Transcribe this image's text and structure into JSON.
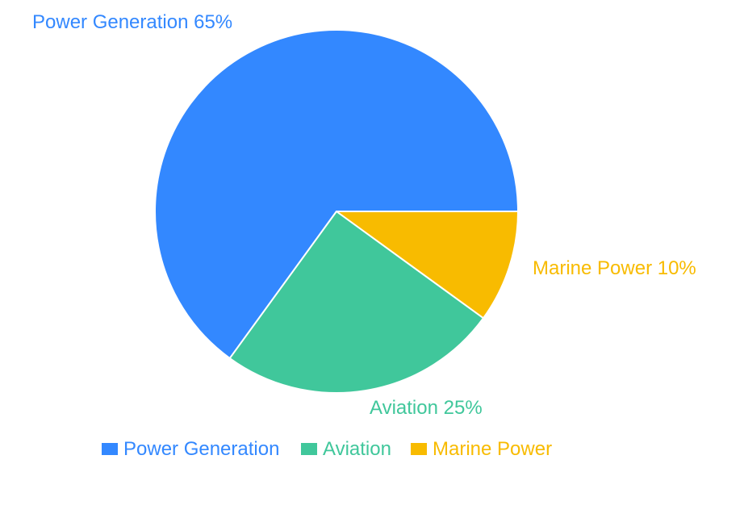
{
  "chart_data": {
    "type": "pie",
    "title": "",
    "start_angle_deg": 0,
    "direction": "counterclockwise",
    "slices": [
      {
        "label": "Power Generation",
        "value": 65,
        "display": "Power Generation 65%",
        "color": "#3388ff"
      },
      {
        "label": "Aviation",
        "value": 25,
        "display": "Aviation 25%",
        "color": "#40c79b"
      },
      {
        "label": "Marine Power",
        "value": 10,
        "display": "Marine Power 10%",
        "color": "#f8bb00"
      }
    ],
    "legend": {
      "placement": "bottom",
      "entries": [
        "Power Generation",
        "Aviation",
        "Marine Power"
      ]
    }
  }
}
